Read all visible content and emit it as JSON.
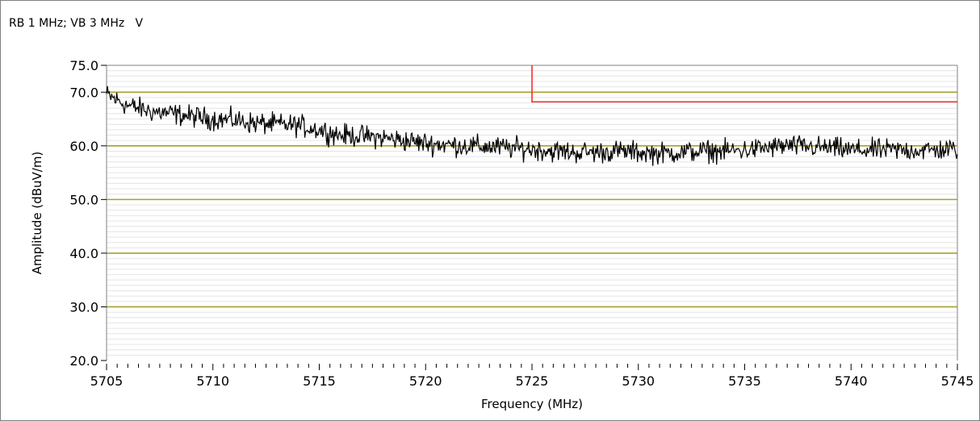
{
  "header": {
    "text": "RB 1 MHz; VB 3 MHz   V"
  },
  "colors": {
    "major_grid": "#a8a02a",
    "minor_grid": "#e4e4e4",
    "trace": "#000000",
    "limit": "#ff2a2a",
    "axis": "#808080"
  },
  "chart_data": {
    "type": "line",
    "title": "",
    "xlabel": "Frequency (MHz)",
    "ylabel": "Amplitude (dBuV/m)",
    "xlim": [
      5705,
      5745
    ],
    "ylim": [
      20,
      75
    ],
    "x_ticks": [
      5705,
      5710,
      5715,
      5720,
      5725,
      5730,
      5735,
      5740,
      5745
    ],
    "x_tick_labels": [
      "5705",
      "5710",
      "5715",
      "5720",
      "5725",
      "5730",
      "5735",
      "5740",
      "5745"
    ],
    "y_ticks": [
      20,
      30,
      40,
      50,
      60,
      70,
      75
    ],
    "y_tick_labels": [
      "20.0",
      "30.0",
      "40.0",
      "50.0",
      "60.0",
      "70.0",
      "75.0"
    ],
    "major_gridlines_y": [
      30,
      40,
      50,
      60,
      70
    ],
    "limit_line": {
      "points": [
        [
          5725,
          75
        ],
        [
          5725,
          68.2
        ],
        [
          5745,
          68.2
        ]
      ]
    },
    "series": [
      {
        "x": [
          5705,
          5706,
          5707,
          5708,
          5709,
          5710,
          5711,
          5712,
          5713,
          5714,
          5715,
          5716,
          5717,
          5718,
          5719,
          5720,
          5721,
          5722,
          5723,
          5724,
          5725,
          5726,
          5727,
          5728,
          5729,
          5730,
          5731,
          5732,
          5733,
          5734,
          5735,
          5736,
          5737,
          5738,
          5739,
          5740,
          5741,
          5742,
          5743,
          5744,
          5745
        ],
        "values": [
          69.5,
          67.5,
          66.5,
          66.0,
          65.5,
          65.0,
          64.8,
          64.2,
          64.0,
          63.8,
          63.0,
          62.0,
          61.8,
          61.5,
          61.0,
          60.5,
          60.2,
          60.0,
          59.8,
          59.6,
          59.4,
          59.0,
          58.8,
          58.8,
          59.0,
          58.8,
          58.6,
          58.8,
          59.0,
          59.0,
          59.2,
          59.6,
          60.0,
          59.8,
          59.6,
          59.2,
          59.2,
          59.2,
          59.2,
          59.2,
          59.4
        ]
      }
    ],
    "grid": true
  }
}
